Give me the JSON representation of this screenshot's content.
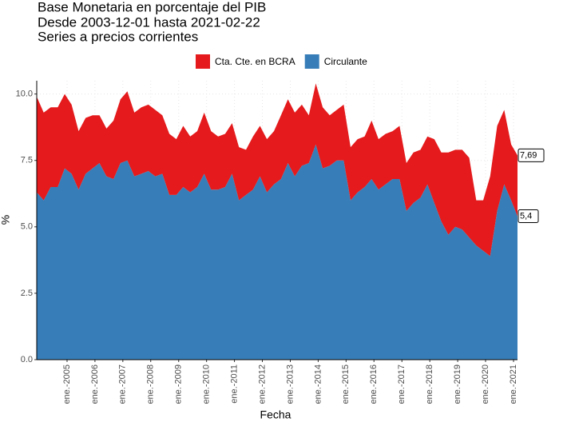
{
  "chart_data": {
    "type": "stacked-area",
    "title_lines": [
      "Base Monetaria en porcentaje del PIB",
      "Desde 2003-12-01 hasta 2021-02-22",
      "Series a precios corrientes"
    ],
    "x_label": "Fecha",
    "y_label": "%",
    "x": [
      "2003-12-01",
      "2004-03-01",
      "2004-06-01",
      "2004-09-01",
      "2004-12-01",
      "2005-03-01",
      "2005-06-01",
      "2005-09-01",
      "2005-12-01",
      "2006-03-01",
      "2006-06-01",
      "2006-09-01",
      "2006-12-01",
      "2007-03-01",
      "2007-06-01",
      "2007-09-01",
      "2007-12-01",
      "2008-03-01",
      "2008-06-01",
      "2008-09-01",
      "2008-12-01",
      "2009-03-01",
      "2009-06-01",
      "2009-09-01",
      "2009-12-01",
      "2010-03-01",
      "2010-06-01",
      "2010-09-01",
      "2010-12-01",
      "2011-03-01",
      "2011-06-01",
      "2011-09-01",
      "2011-12-01",
      "2012-03-01",
      "2012-06-01",
      "2012-09-01",
      "2012-12-01",
      "2013-03-01",
      "2013-06-01",
      "2013-09-01",
      "2013-12-01",
      "2014-03-01",
      "2014-06-01",
      "2014-09-01",
      "2014-12-01",
      "2015-03-01",
      "2015-06-01",
      "2015-09-01",
      "2015-12-01",
      "2016-03-01",
      "2016-06-01",
      "2016-09-01",
      "2016-12-01",
      "2017-03-01",
      "2017-06-01",
      "2017-09-01",
      "2017-12-01",
      "2018-03-01",
      "2018-06-01",
      "2018-09-01",
      "2018-12-01",
      "2019-03-01",
      "2019-06-01",
      "2019-09-01",
      "2019-12-01",
      "2020-03-01",
      "2020-06-01",
      "2020-09-01",
      "2020-12-01",
      "2021-02-22"
    ],
    "series": [
      {
        "name": "Cta. Cte. en BCRA",
        "color": "#E41A1C",
        "values": [
          3.6,
          3.3,
          3.0,
          3.0,
          2.8,
          2.6,
          2.2,
          2.1,
          2.0,
          1.8,
          1.8,
          2.2,
          2.4,
          2.6,
          2.4,
          2.5,
          2.5,
          2.5,
          2.2,
          2.3,
          2.1,
          2.3,
          2.1,
          2.1,
          2.3,
          2.2,
          2.0,
          2.0,
          1.9,
          2.0,
          1.7,
          2.0,
          1.9,
          2.0,
          2.0,
          2.4,
          2.4,
          2.4,
          2.3,
          1.8,
          2.3,
          2.3,
          1.9,
          1.9,
          2.1,
          2.0,
          2.0,
          1.9,
          2.2,
          1.9,
          1.9,
          1.8,
          2.0,
          1.8,
          1.9,
          1.8,
          1.8,
          2.4,
          2.6,
          3.1,
          2.9,
          3.0,
          3.0,
          1.7,
          1.9,
          3.0,
          3.2,
          2.8,
          2.1,
          2.29
        ]
      },
      {
        "name": "Circulante",
        "color": "#377EB8",
        "values": [
          6.3,
          6.0,
          6.5,
          6.5,
          7.2,
          7.0,
          6.4,
          7.0,
          7.2,
          7.4,
          6.9,
          6.8,
          7.4,
          7.5,
          6.9,
          7.0,
          7.1,
          6.9,
          7.0,
          6.2,
          6.2,
          6.5,
          6.3,
          6.5,
          7.0,
          6.4,
          6.4,
          6.5,
          7.0,
          6.0,
          6.2,
          6.4,
          6.9,
          6.3,
          6.6,
          6.8,
          7.4,
          6.9,
          7.3,
          7.4,
          8.1,
          7.2,
          7.3,
          7.5,
          7.5,
          6.0,
          6.3,
          6.5,
          6.8,
          6.4,
          6.6,
          6.8,
          6.8,
          5.6,
          5.9,
          6.1,
          6.6,
          5.9,
          5.2,
          4.7,
          5.0,
          4.9,
          4.6,
          4.3,
          4.1,
          3.9,
          5.6,
          6.6,
          6.0,
          5.4
        ]
      }
    ],
    "annotations": [
      {
        "value": 7.69,
        "label": "7,69"
      },
      {
        "value": 5.4,
        "label": "5,4"
      }
    ],
    "xlim": [
      "2003-12-01",
      "2021-02-22"
    ],
    "xticks": [
      {
        "value": "2005-01-01",
        "label": "ene.-2005"
      },
      {
        "value": "2006-01-01",
        "label": "ene.-2006"
      },
      {
        "value": "2007-01-01",
        "label": "ene.-2007"
      },
      {
        "value": "2008-01-01",
        "label": "ene.-2008"
      },
      {
        "value": "2009-01-01",
        "label": "ene.-2009"
      },
      {
        "value": "2010-01-01",
        "label": "ene.-2010"
      },
      {
        "value": "2011-01-01",
        "label": "ene.-2011"
      },
      {
        "value": "2012-01-01",
        "label": "ene.-2012"
      },
      {
        "value": "2013-01-01",
        "label": "ene.-2013"
      },
      {
        "value": "2014-01-01",
        "label": "ene.-2014"
      },
      {
        "value": "2015-01-01",
        "label": "ene.-2015"
      },
      {
        "value": "2016-01-01",
        "label": "ene.-2016"
      },
      {
        "value": "2017-01-01",
        "label": "ene.-2017"
      },
      {
        "value": "2018-01-01",
        "label": "ene.-2018"
      },
      {
        "value": "2019-01-01",
        "label": "ene.-2019"
      },
      {
        "value": "2020-01-01",
        "label": "ene.-2020"
      },
      {
        "value": "2021-01-01",
        "label": "ene.-2021"
      }
    ],
    "ylim": [
      0,
      10.5
    ],
    "yticks": [
      {
        "value": 0,
        "label": "0.0"
      },
      2.5,
      {
        "value": 5,
        "label": "5.0"
      },
      7.5,
      {
        "value": 10,
        "label": "10.0"
      }
    ],
    "grid": true
  }
}
